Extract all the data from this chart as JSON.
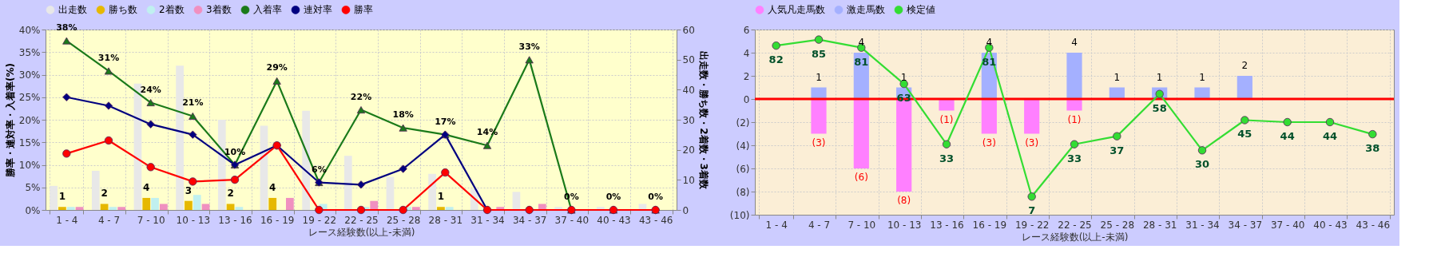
{
  "chart_data": [
    {
      "type": "bar",
      "categories": [
        "1 - 4",
        "4 - 7",
        "7 - 10",
        "10 - 13",
        "13 - 16",
        "16 - 19",
        "19 - 22",
        "22 - 25",
        "25 - 28",
        "28 - 31",
        "31 - 34",
        "34 - 37",
        "37 - 40",
        "40 - 43",
        "43 - 46"
      ],
      "xlabel": "レース経験数(以上-未満)",
      "ylabel": "勝率・連対率・入着率(%)",
      "y2label": "出走数・勝ち数・2着数・3着数",
      "ylim": [
        0,
        40
      ],
      "yticks": [
        {
          "value": 0,
          "label": "0%"
        },
        {
          "value": 5,
          "label": "5%"
        },
        {
          "value": 10,
          "label": "10%"
        },
        {
          "value": 15,
          "label": "15%"
        },
        {
          "value": 20,
          "label": "20%"
        },
        {
          "value": 25,
          "label": "25%"
        },
        {
          "value": 30,
          "label": "30%"
        },
        {
          "value": 35,
          "label": "35%"
        },
        {
          "value": 40,
          "label": "40%"
        }
      ],
      "y2lim": [
        0,
        60
      ],
      "y2ticks": [
        0,
        10,
        20,
        30,
        40,
        50,
        60
      ],
      "grid": true,
      "legend": "top",
      "series": [
        {
          "name": "出走数",
          "axis": "y2",
          "color": "#e8e8e8",
          "values": [
            8,
            13,
            42,
            48,
            30,
            28,
            33,
            18,
            11,
            12,
            7,
            6,
            1,
            1,
            2
          ]
        },
        {
          "name": "勝ち数",
          "axis": "y2",
          "color": "#e6b800",
          "values": [
            1,
            2,
            4,
            3,
            2,
            4,
            0,
            0,
            0,
            1,
            0,
            0,
            0,
            0,
            0
          ],
          "value_labels": [
            "1",
            "2",
            "4",
            "3",
            "2",
            "4",
            null,
            null,
            null,
            "1",
            null,
            null,
            null,
            null,
            null
          ]
        },
        {
          "name": "2着数",
          "axis": "y2",
          "color": "#c0f0f0",
          "values": [
            1,
            1,
            4,
            5,
            1,
            0,
            2,
            1,
            1,
            1,
            0,
            0,
            0,
            0,
            0
          ]
        },
        {
          "name": "3着数",
          "axis": "y2",
          "color": "#f090c0",
          "values": [
            1,
            1,
            2,
            2,
            0,
            4,
            0,
            3,
            1,
            0,
            1,
            2,
            0,
            0,
            0
          ]
        },
        {
          "name": "入着率",
          "type": "line",
          "marker": "triangle",
          "color": "#1a7a1a",
          "values": [
            37.5,
            30.8,
            23.8,
            20.8,
            10,
            28.6,
            6.1,
            22.2,
            18.2,
            16.7,
            14.3,
            33.3,
            0,
            0,
            0
          ],
          "value_labels": [
            "38%",
            "31%",
            "24%",
            "21%",
            "10%",
            "29%",
            "6%",
            "22%",
            "18%",
            "17%",
            "14%",
            "33%",
            "0%",
            "0%",
            "0%"
          ]
        },
        {
          "name": "連対率",
          "type": "line",
          "marker": "diamond",
          "color": "#000080",
          "values": [
            25,
            23.1,
            19,
            16.7,
            10,
            14.3,
            6.1,
            5.6,
            9.1,
            16.7,
            0,
            0,
            0,
            0,
            0
          ]
        },
        {
          "name": "勝率",
          "type": "line",
          "marker": "circle",
          "color": "#ff0000",
          "values": [
            12.5,
            15.4,
            9.5,
            6.3,
            6.7,
            14.3,
            0,
            0,
            0,
            8.3,
            0,
            0,
            0,
            0,
            0
          ]
        }
      ]
    },
    {
      "type": "bar",
      "stacked": true,
      "categories": [
        "1 - 4",
        "4 - 7",
        "7 - 10",
        "10 - 13",
        "13 - 16",
        "16 - 19",
        "19 - 22",
        "22 - 25",
        "25 - 28",
        "28 - 31",
        "31 - 34",
        "34 - 37",
        "37 - 40",
        "40 - 43",
        "43 - 46"
      ],
      "xlabel": "レース経験数(以上-未満)",
      "ylim": [
        -10,
        6
      ],
      "yticks": [
        6,
        4,
        2,
        0,
        {
          "value": -2,
          "label": "(2)"
        },
        {
          "value": -4,
          "label": "(4)"
        },
        {
          "value": -6,
          "label": "(6)"
        },
        {
          "value": -8,
          "label": "(8)"
        },
        {
          "value": -10,
          "label": "(10)"
        }
      ],
      "y2lim": [
        -2,
        90
      ],
      "grid": true,
      "legend": "top",
      "ref_lines": [
        {
          "axis": "y",
          "value": 0,
          "color": "#ff0000"
        }
      ],
      "series": [
        {
          "name": "人気凡走馬数",
          "color": "#ff80ff",
          "values": [
            0,
            -3,
            -6,
            -8,
            -1,
            -3,
            -3,
            -1,
            0,
            0,
            0,
            0,
            0,
            0,
            0
          ],
          "value_labels": [
            null,
            "(3)",
            "(6)",
            "(8)",
            "(1)",
            "(3)",
            "(3)",
            "(1)",
            null,
            null,
            null,
            null,
            null,
            null,
            null
          ]
        },
        {
          "name": "激走馬数",
          "color": "#a4b0ff",
          "values": [
            0,
            1,
            4,
            1,
            0,
            4,
            0,
            4,
            1,
            1,
            1,
            2,
            0,
            0,
            0
          ],
          "value_labels": [
            null,
            "1",
            "4",
            "1",
            null,
            "4",
            null,
            "4",
            "1",
            "1",
            "1",
            "2",
            null,
            null,
            null
          ]
        },
        {
          "name": "検定値",
          "type": "line",
          "axis": "y2",
          "marker": "circle",
          "color": "#33dd33",
          "values": [
            82,
            85,
            81,
            63,
            33,
            81,
            7,
            33,
            37,
            58,
            30,
            45,
            44,
            44,
            38
          ],
          "value_labels": [
            "82",
            "85",
            "81",
            "63",
            "33",
            "81",
            "7",
            "33",
            "37",
            "58",
            "30",
            "45",
            "44",
            "44",
            "38"
          ]
        }
      ]
    }
  ]
}
